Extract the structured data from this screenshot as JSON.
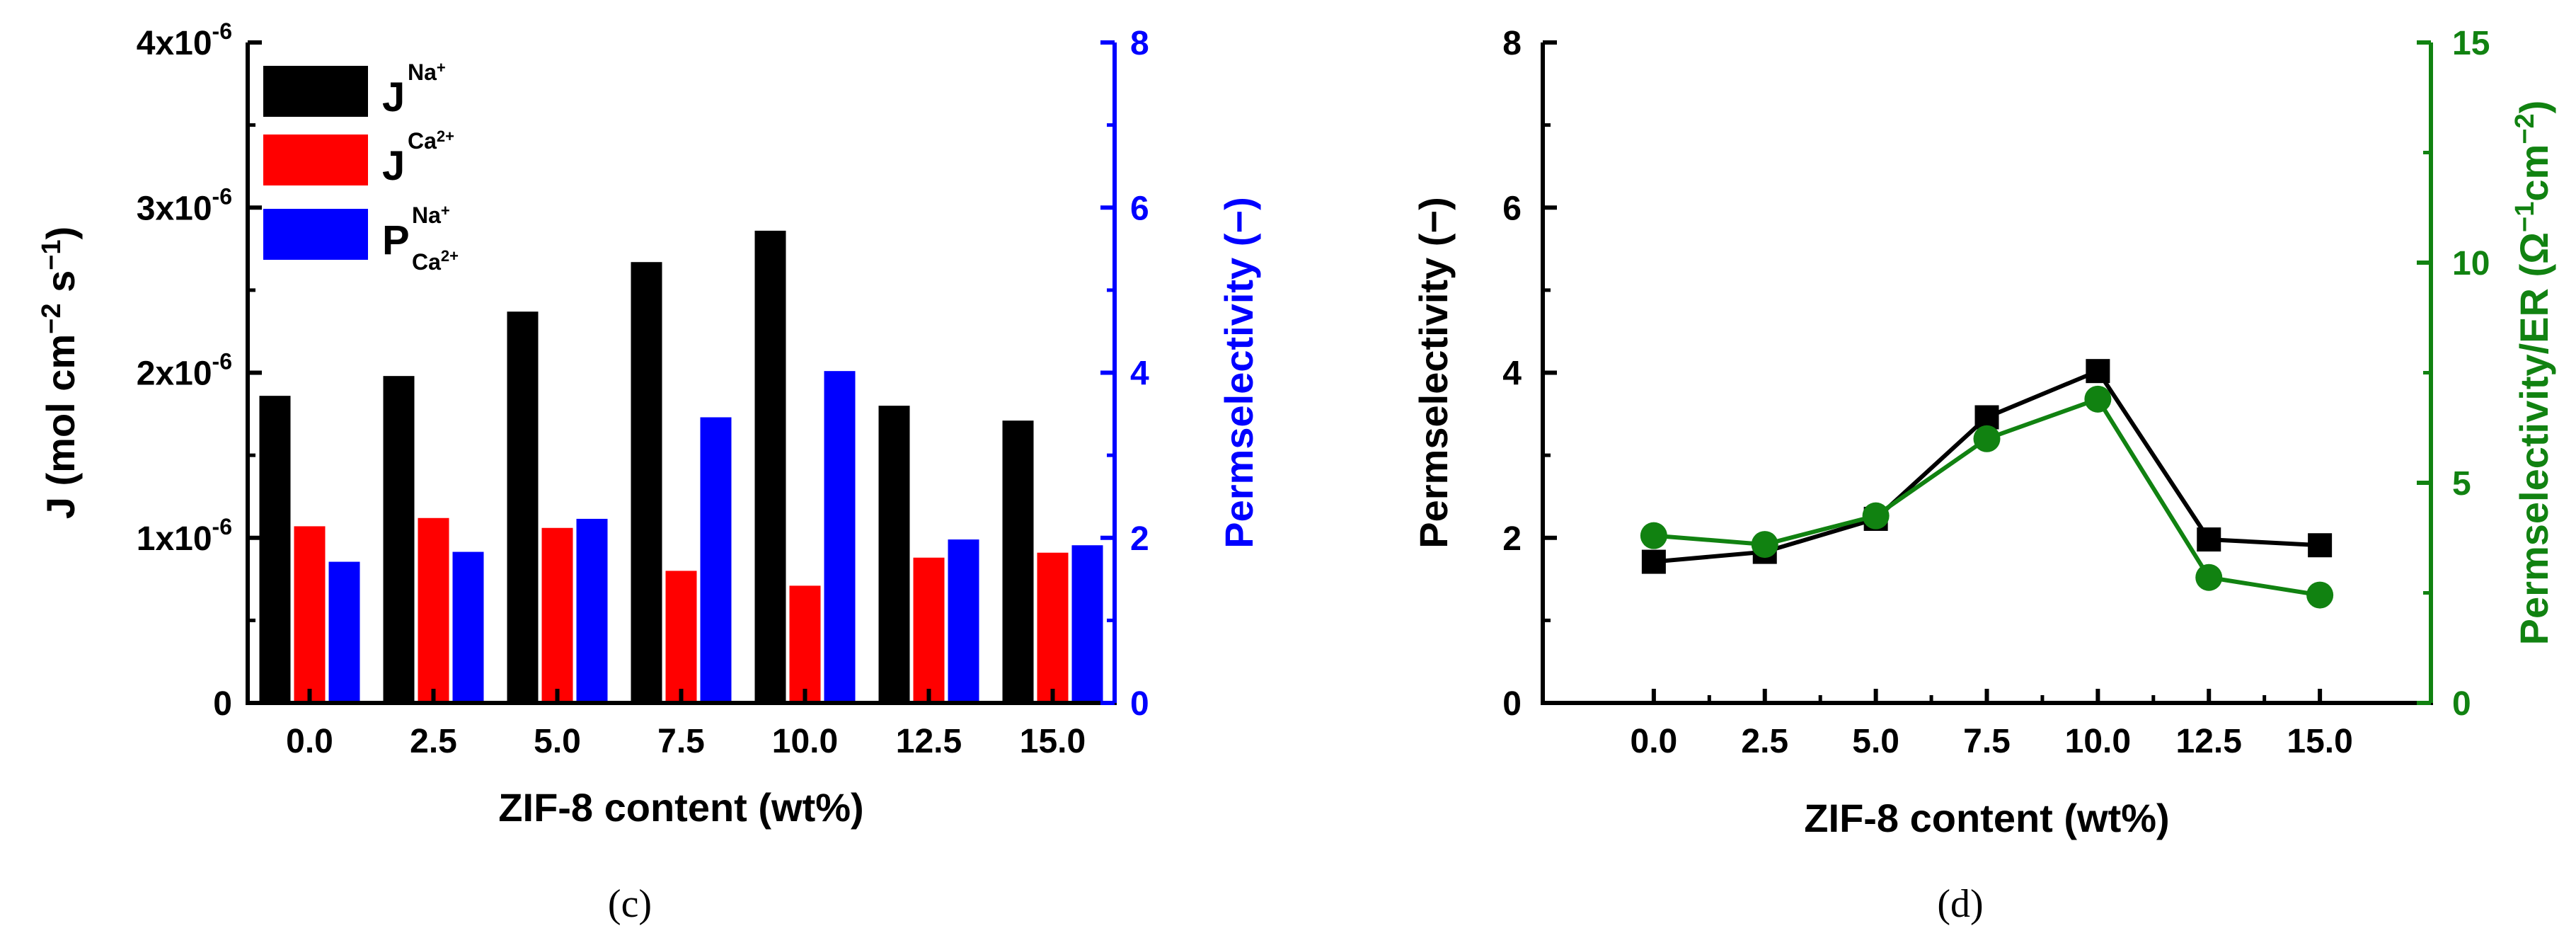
{
  "colors": {
    "black": "#000000",
    "red": "#ff0000",
    "blue": "#0000ff",
    "green": "#118211"
  },
  "chart_data": [
    {
      "type": "bar",
      "panel_label": "(c)",
      "xlabel": "ZIF-8 content (wt%)",
      "ylabel": "J (mol cm−2 s−1)",
      "ylabel_parts": {
        "main": "J (mol cm",
        "sup1": "−2",
        "mid": " s",
        "sup2": "−1",
        "end": ")"
      },
      "y2label": "Permselectivity (−)",
      "categories": [
        "0.0",
        "2.5",
        "5.0",
        "7.5",
        "10.0",
        "12.5",
        "15.0"
      ],
      "ylim": [
        0,
        4e-06
      ],
      "yticks": [
        {
          "value": 0,
          "mant": "0",
          "exp": ""
        },
        {
          "value": 1e-06,
          "mant": "1x10",
          "exp": "-6"
        },
        {
          "value": 2e-06,
          "mant": "2x10",
          "exp": "-6"
        },
        {
          "value": 3e-06,
          "mant": "3x10",
          "exp": "-6"
        },
        {
          "value": 4e-06,
          "mant": "4x10",
          "exp": "-6"
        }
      ],
      "y2lim": [
        0,
        8
      ],
      "y2ticks": [
        "0",
        "2",
        "4",
        "6",
        "8"
      ],
      "series": [
        {
          "name": "J Na+",
          "axis": "left",
          "values": [
            1.86e-06,
            1.98e-06,
            2.37e-06,
            2.67e-06,
            2.86e-06,
            1.8e-06,
            1.71e-06
          ]
        },
        {
          "name": "J Ca2+",
          "axis": "left",
          "values": [
            1.07e-06,
            1.12e-06,
            1.06e-06,
            8e-07,
            7.1e-07,
            8.8e-07,
            9.1e-07
          ]
        },
        {
          "name": "P Na+/Ca2+",
          "axis": "right",
          "values": [
            1.71,
            1.83,
            2.23,
            3.46,
            4.02,
            1.98,
            1.91
          ]
        }
      ],
      "legend": {
        "position": "top-left",
        "entries": [
          {
            "base": "J",
            "sup": "Na",
            "supsup": "+",
            "sub": "",
            "subsup": ""
          },
          {
            "base": "J",
            "sup": "Ca",
            "supsup": "2+",
            "sub": "",
            "subsup": ""
          },
          {
            "base": "P",
            "sup": "Na",
            "supsup": "+",
            "sub": "Ca",
            "subsup": "2+"
          }
        ]
      }
    },
    {
      "type": "line",
      "panel_label": "(d)",
      "xlabel": "ZIF-8 content (wt%)",
      "ylabel": "Permselectivity (−)",
      "y2label": "Permselectivity/ER (Ω−1cm−2)",
      "y2label_parts": {
        "main": "Permselectivity/ER (Ω",
        "sup1": "−1",
        "mid": "cm",
        "sup2": "−2",
        "end": ")"
      },
      "x": [
        0.0,
        2.5,
        5.0,
        7.5,
        10.0,
        12.5,
        15.0
      ],
      "xticks": [
        "0.0",
        "2.5",
        "5.0",
        "7.5",
        "10.0",
        "12.5",
        "15.0"
      ],
      "xlim": [
        -2.5,
        17.5
      ],
      "ylim": [
        0,
        8
      ],
      "yticks": [
        "0",
        "2",
        "4",
        "6",
        "8"
      ],
      "y2lim": [
        0,
        15
      ],
      "y2ticks": [
        "0",
        "5",
        "10",
        "15"
      ],
      "series": [
        {
          "name": "Permselectivity",
          "axis": "left",
          "marker": "square",
          "values": [
            1.71,
            1.83,
            2.23,
            3.46,
            4.02,
            1.98,
            1.91
          ]
        },
        {
          "name": "Permselectivity/ER",
          "axis": "right",
          "marker": "circle",
          "values": [
            3.8,
            3.6,
            4.25,
            6.0,
            6.9,
            2.85,
            2.45
          ]
        }
      ]
    }
  ]
}
